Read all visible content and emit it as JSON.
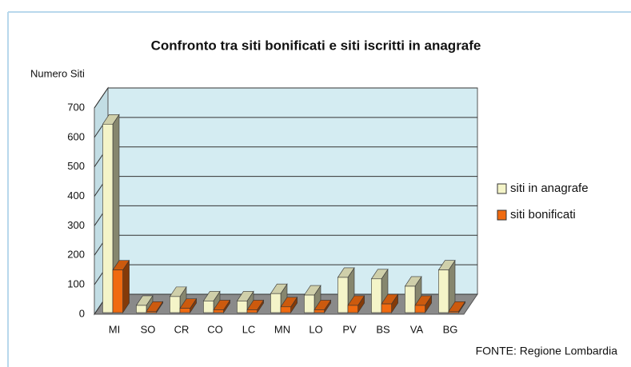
{
  "chart_data": {
    "type": "bar3d",
    "title": "Confronto tra siti bonificati e siti iscritti in anagrafe",
    "y_label": "Numero Siti",
    "source": "FONTE: Regione Lombardia",
    "categories": [
      "MI",
      "SO",
      "CR",
      "CO",
      "LC",
      "MN",
      "LO",
      "PV",
      "BS",
      "VA",
      "BG"
    ],
    "series": [
      {
        "name": "siti in anagrafe",
        "color": "#f4f4c8",
        "values": [
          645,
          30,
          60,
          45,
          45,
          70,
          65,
          125,
          120,
          95,
          150
        ]
      },
      {
        "name": "siti bonificati",
        "color": "#f06a10",
        "values": [
          150,
          10,
          20,
          15,
          15,
          25,
          15,
          30,
          35,
          30,
          10
        ]
      }
    ],
    "ylim": [
      0,
      700
    ],
    "yticks": [
      0,
      100,
      200,
      300,
      400,
      500,
      600,
      700
    ],
    "grid": true,
    "legend": "right"
  }
}
